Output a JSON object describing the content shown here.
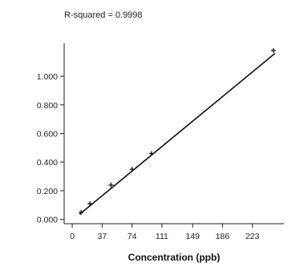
{
  "chart_data": {
    "type": "scatter",
    "annotation": "R-squared = 0.9998",
    "title": "",
    "xlabel": "Concentration (ppb)",
    "ylabel": "",
    "xlim": [
      -10,
      262
    ],
    "ylim": [
      -0.03,
      1.23
    ],
    "xticks": [
      0,
      37,
      74,
      111,
      149,
      186,
      223
    ],
    "xtick_labels": [
      "0",
      "37",
      "74",
      "111",
      "149",
      "186",
      "223"
    ],
    "yticks": [
      0,
      0.2,
      0.4,
      0.6,
      0.8,
      1.0
    ],
    "ytick_labels": [
      "0.000",
      "0.200",
      "0.400",
      "0.600",
      "0.800",
      "1.000"
    ],
    "grid": false,
    "series": [
      {
        "points": [
          {
            "x": 11,
            "y": 0.05
          },
          {
            "x": 22,
            "y": 0.11
          },
          {
            "x": 48,
            "y": 0.24
          },
          {
            "x": 74,
            "y": 0.35
          },
          {
            "x": 98,
            "y": 0.46
          },
          {
            "x": 249,
            "y": 1.18
          }
        ]
      }
    ],
    "fit_line": {
      "x": [
        9,
        251
      ],
      "y": [
        0.035,
        1.16
      ]
    }
  }
}
